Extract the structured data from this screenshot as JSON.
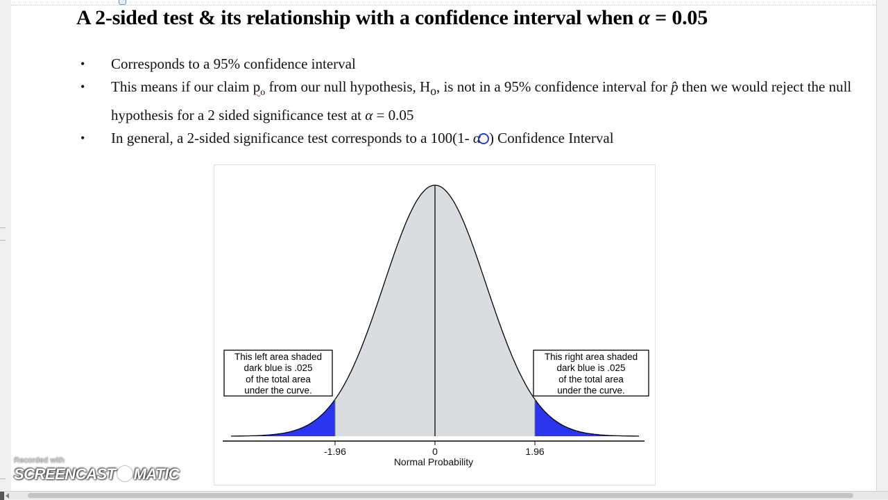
{
  "title": {
    "before_alpha": "A 2-sided test & its relationship with a confidence interval when ",
    "alpha": "α",
    "after_alpha": " = 0.05"
  },
  "bullets": {
    "b1": "Corresponds to a 95% confidence interval",
    "b2_part1": "This means if our claim ",
    "b2_p0": "p",
    "b2_p0_sub": "o",
    "b2_part2": " from our null hypothesis, H",
    "b2_h0_sub": "o",
    "b2_part3": ", is not in a 95% confidence interval for ",
    "b2_phat": "p̂",
    "b2_part4": " then we would reject the null hypothesis for a 2 sided significance test at ",
    "b2_alpha": "α",
    "b2_part5": " = 0.05",
    "b3_part1": "In general, a 2-sided significance test corresponds to a 100(1- ",
    "b3_alpha": "α",
    "b3_part2": ") Confidence Interval",
    "bullet_symbol": "•"
  },
  "chart_data": {
    "type": "area",
    "distribution": "standard normal",
    "xlabel": "Normal Probability",
    "xlim": [
      -4,
      4
    ],
    "ticks": [
      {
        "x": -1.96,
        "label": "-1.96"
      },
      {
        "x": 0,
        "label": "0"
      },
      {
        "x": 1.96,
        "label": "1.96"
      }
    ],
    "shaded_regions": [
      {
        "from": -4,
        "to": -1.96,
        "area": 0.025,
        "color": "#2a35ee"
      },
      {
        "from": -1.96,
        "to": 1.96,
        "area": 0.95,
        "color": "#d9dde2"
      },
      {
        "from": 1.96,
        "to": 4,
        "area": 0.025,
        "color": "#2a35ee"
      }
    ],
    "annotations": {
      "left": [
        "This left area shaded",
        "dark blue is .025",
        "of the total area",
        "under the curve."
      ],
      "right": [
        "This right area shaded",
        "dark blue is .025",
        "of the total area",
        "under the curve."
      ]
    }
  },
  "watermark": {
    "recorded": "Recorded with",
    "brand_left": "SCREENCAST",
    "brand_right": "MATIC"
  }
}
